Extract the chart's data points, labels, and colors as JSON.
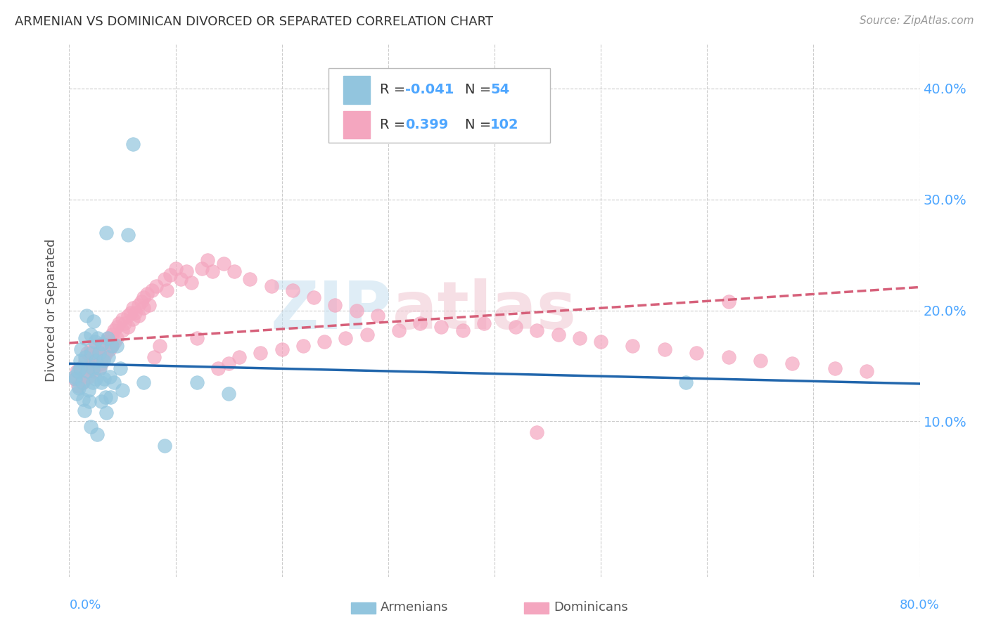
{
  "title": "ARMENIAN VS DOMINICAN DIVORCED OR SEPARATED CORRELATION CHART",
  "source": "Source: ZipAtlas.com",
  "ylabel": "Divorced or Separated",
  "xlim": [
    0.0,
    0.8
  ],
  "ylim": [
    -0.04,
    0.44
  ],
  "yticks": [
    0.1,
    0.2,
    0.3,
    0.4
  ],
  "ytick_labels": [
    "10.0%",
    "20.0%",
    "30.0%",
    "40.0%"
  ],
  "xticks": [
    0.0,
    0.1,
    0.2,
    0.3,
    0.4,
    0.5,
    0.6,
    0.7,
    0.8
  ],
  "color_armenian": "#92c5de",
  "color_dominican": "#f4a6bf",
  "color_line_armenian": "#2166ac",
  "color_line_dominican": "#d6607a",
  "color_axis_text": "#4da6ff",
  "color_dark_text": "#333333",
  "color_source": "#999999",
  "armenian_x": [
    0.005,
    0.006,
    0.007,
    0.008,
    0.009,
    0.01,
    0.01,
    0.011,
    0.012,
    0.013,
    0.014,
    0.015,
    0.015,
    0.016,
    0.017,
    0.018,
    0.019,
    0.02,
    0.02,
    0.021,
    0.022,
    0.022,
    0.023,
    0.024,
    0.025,
    0.025,
    0.026,
    0.027,
    0.028,
    0.029,
    0.03,
    0.03,
    0.031,
    0.032,
    0.033,
    0.034,
    0.035,
    0.035,
    0.036,
    0.037,
    0.038,
    0.039,
    0.04,
    0.042,
    0.045,
    0.048,
    0.05,
    0.055,
    0.06,
    0.07,
    0.09,
    0.12,
    0.15,
    0.58
  ],
  "armenian_y": [
    0.14,
    0.138,
    0.125,
    0.145,
    0.13,
    0.155,
    0.148,
    0.165,
    0.135,
    0.12,
    0.11,
    0.175,
    0.158,
    0.195,
    0.145,
    0.128,
    0.118,
    0.095,
    0.178,
    0.162,
    0.148,
    0.135,
    0.19,
    0.172,
    0.155,
    0.138,
    0.088,
    0.175,
    0.162,
    0.148,
    0.135,
    0.118,
    0.17,
    0.155,
    0.138,
    0.122,
    0.108,
    0.27,
    0.175,
    0.158,
    0.14,
    0.122,
    0.168,
    0.135,
    0.168,
    0.148,
    0.128,
    0.268,
    0.35,
    0.135,
    0.078,
    0.135,
    0.125,
    0.135
  ],
  "dominican_x": [
    0.005,
    0.007,
    0.008,
    0.01,
    0.012,
    0.013,
    0.015,
    0.015,
    0.017,
    0.018,
    0.02,
    0.02,
    0.022,
    0.023,
    0.025,
    0.025,
    0.027,
    0.028,
    0.03,
    0.03,
    0.032,
    0.033,
    0.035,
    0.035,
    0.037,
    0.038,
    0.04,
    0.04,
    0.042,
    0.043,
    0.045,
    0.045,
    0.047,
    0.05,
    0.05,
    0.052,
    0.055,
    0.055,
    0.058,
    0.06,
    0.06,
    0.062,
    0.065,
    0.065,
    0.068,
    0.07,
    0.07,
    0.073,
    0.075,
    0.078,
    0.08,
    0.082,
    0.085,
    0.09,
    0.092,
    0.095,
    0.1,
    0.105,
    0.11,
    0.115,
    0.12,
    0.125,
    0.13,
    0.135,
    0.14,
    0.145,
    0.15,
    0.155,
    0.16,
    0.17,
    0.18,
    0.19,
    0.2,
    0.21,
    0.22,
    0.23,
    0.24,
    0.25,
    0.26,
    0.27,
    0.28,
    0.29,
    0.31,
    0.33,
    0.35,
    0.37,
    0.39,
    0.42,
    0.44,
    0.46,
    0.48,
    0.5,
    0.53,
    0.56,
    0.59,
    0.62,
    0.65,
    0.68,
    0.72,
    0.75,
    0.44,
    0.62
  ],
  "dominican_y": [
    0.138,
    0.145,
    0.132,
    0.148,
    0.14,
    0.135,
    0.155,
    0.148,
    0.162,
    0.14,
    0.165,
    0.152,
    0.158,
    0.145,
    0.168,
    0.155,
    0.16,
    0.148,
    0.162,
    0.152,
    0.168,
    0.158,
    0.172,
    0.162,
    0.175,
    0.165,
    0.178,
    0.168,
    0.182,
    0.172,
    0.185,
    0.175,
    0.188,
    0.192,
    0.182,
    0.188,
    0.195,
    0.185,
    0.198,
    0.202,
    0.192,
    0.198,
    0.205,
    0.195,
    0.208,
    0.212,
    0.202,
    0.215,
    0.205,
    0.218,
    0.158,
    0.222,
    0.168,
    0.228,
    0.218,
    0.232,
    0.238,
    0.228,
    0.235,
    0.225,
    0.175,
    0.238,
    0.245,
    0.235,
    0.148,
    0.242,
    0.152,
    0.235,
    0.158,
    0.228,
    0.162,
    0.222,
    0.165,
    0.218,
    0.168,
    0.212,
    0.172,
    0.205,
    0.175,
    0.2,
    0.178,
    0.195,
    0.182,
    0.188,
    0.185,
    0.182,
    0.188,
    0.185,
    0.182,
    0.178,
    0.175,
    0.172,
    0.168,
    0.165,
    0.162,
    0.158,
    0.155,
    0.152,
    0.148,
    0.145,
    0.09,
    0.208
  ],
  "legend_R_armenian": "-0.041",
  "legend_N_armenian": "54",
  "legend_R_dominican": "0.399",
  "legend_N_dominican": "102"
}
